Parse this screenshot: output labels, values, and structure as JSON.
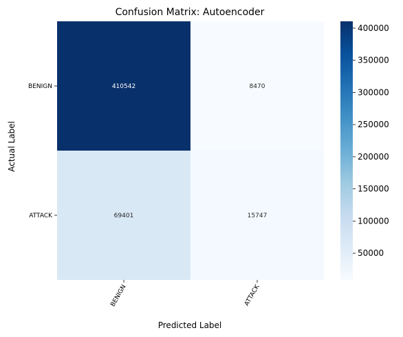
{
  "chart_data": {
    "type": "heatmap",
    "title": "Confusion Matrix: Autoencoder",
    "xlabel": "Predicted Label",
    "ylabel": "Actual Label",
    "x_categories": [
      "BENIGN",
      "ATTACK"
    ],
    "y_categories": [
      "BENIGN",
      "ATTACK"
    ],
    "values": [
      [
        410542,
        8470
      ],
      [
        69401,
        15747
      ]
    ],
    "colormap": "Blues",
    "colorbar": {
      "range": [
        8470,
        410542
      ],
      "ticks": [
        50000,
        100000,
        150000,
        200000,
        250000,
        300000,
        350000,
        400000
      ],
      "tick_labels": [
        "50000",
        "100000",
        "150000",
        "200000",
        "250000",
        "300000",
        "350000",
        "400000"
      ]
    }
  }
}
